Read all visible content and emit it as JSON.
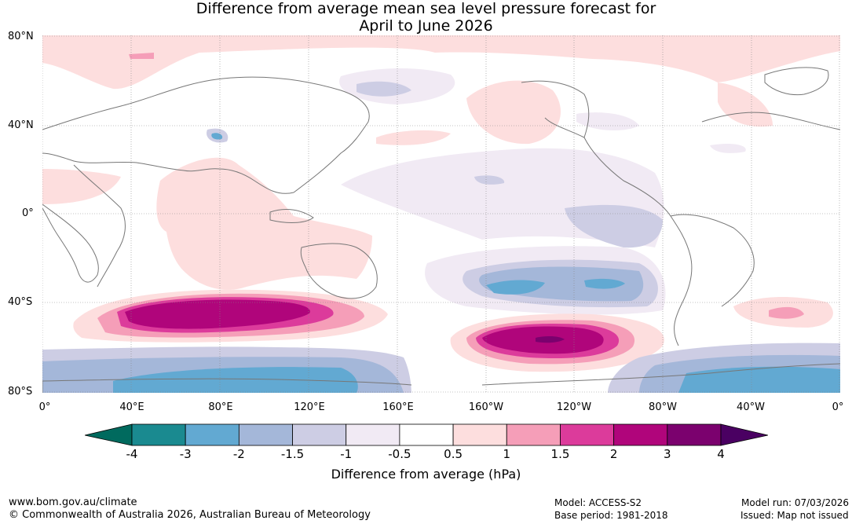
{
  "title": {
    "line1": "Difference from average mean sea level pressure forecast for",
    "line2": "April to June 2026"
  },
  "map": {
    "lat_labels": [
      "80°N",
      "40°N",
      "0°",
      "40°S",
      "80°S"
    ],
    "lon_labels": [
      "0°",
      "40°E",
      "80°E",
      "120°E",
      "160°E",
      "160°W",
      "120°W",
      "80°W",
      "40°W",
      "0°"
    ],
    "land_outline_color": "#777777",
    "grid_color": "#888888"
  },
  "legend": {
    "ticks": [
      "-4",
      "-3",
      "-2",
      "-1.5",
      "-1",
      "-0.5",
      "0.5",
      "1",
      "1.5",
      "2",
      "3",
      "4"
    ],
    "colors": [
      "#1a8a90",
      "#62a9d2",
      "#a4b7d9",
      "#cdcde4",
      "#f1eaf4",
      "#ffffff",
      "#fddede",
      "#f59eb8",
      "#dc3b9b",
      "#b0057b",
      "#7b016e"
    ],
    "extend_low_color": "#006a5e",
    "extend_high_color": "#4a0062",
    "label": "Difference from average (hPa)"
  },
  "footer": {
    "url": "www.bom.gov.au/climate",
    "copyright": "© Commonwealth of Australia 2026, Australian Bureau of Meteorology",
    "model": "Model: ACCESS-S2",
    "base_period": "Base period: 1981-2018",
    "model_run": "Model run: 07/03/2026",
    "issued": "Issued: Map not issued"
  }
}
